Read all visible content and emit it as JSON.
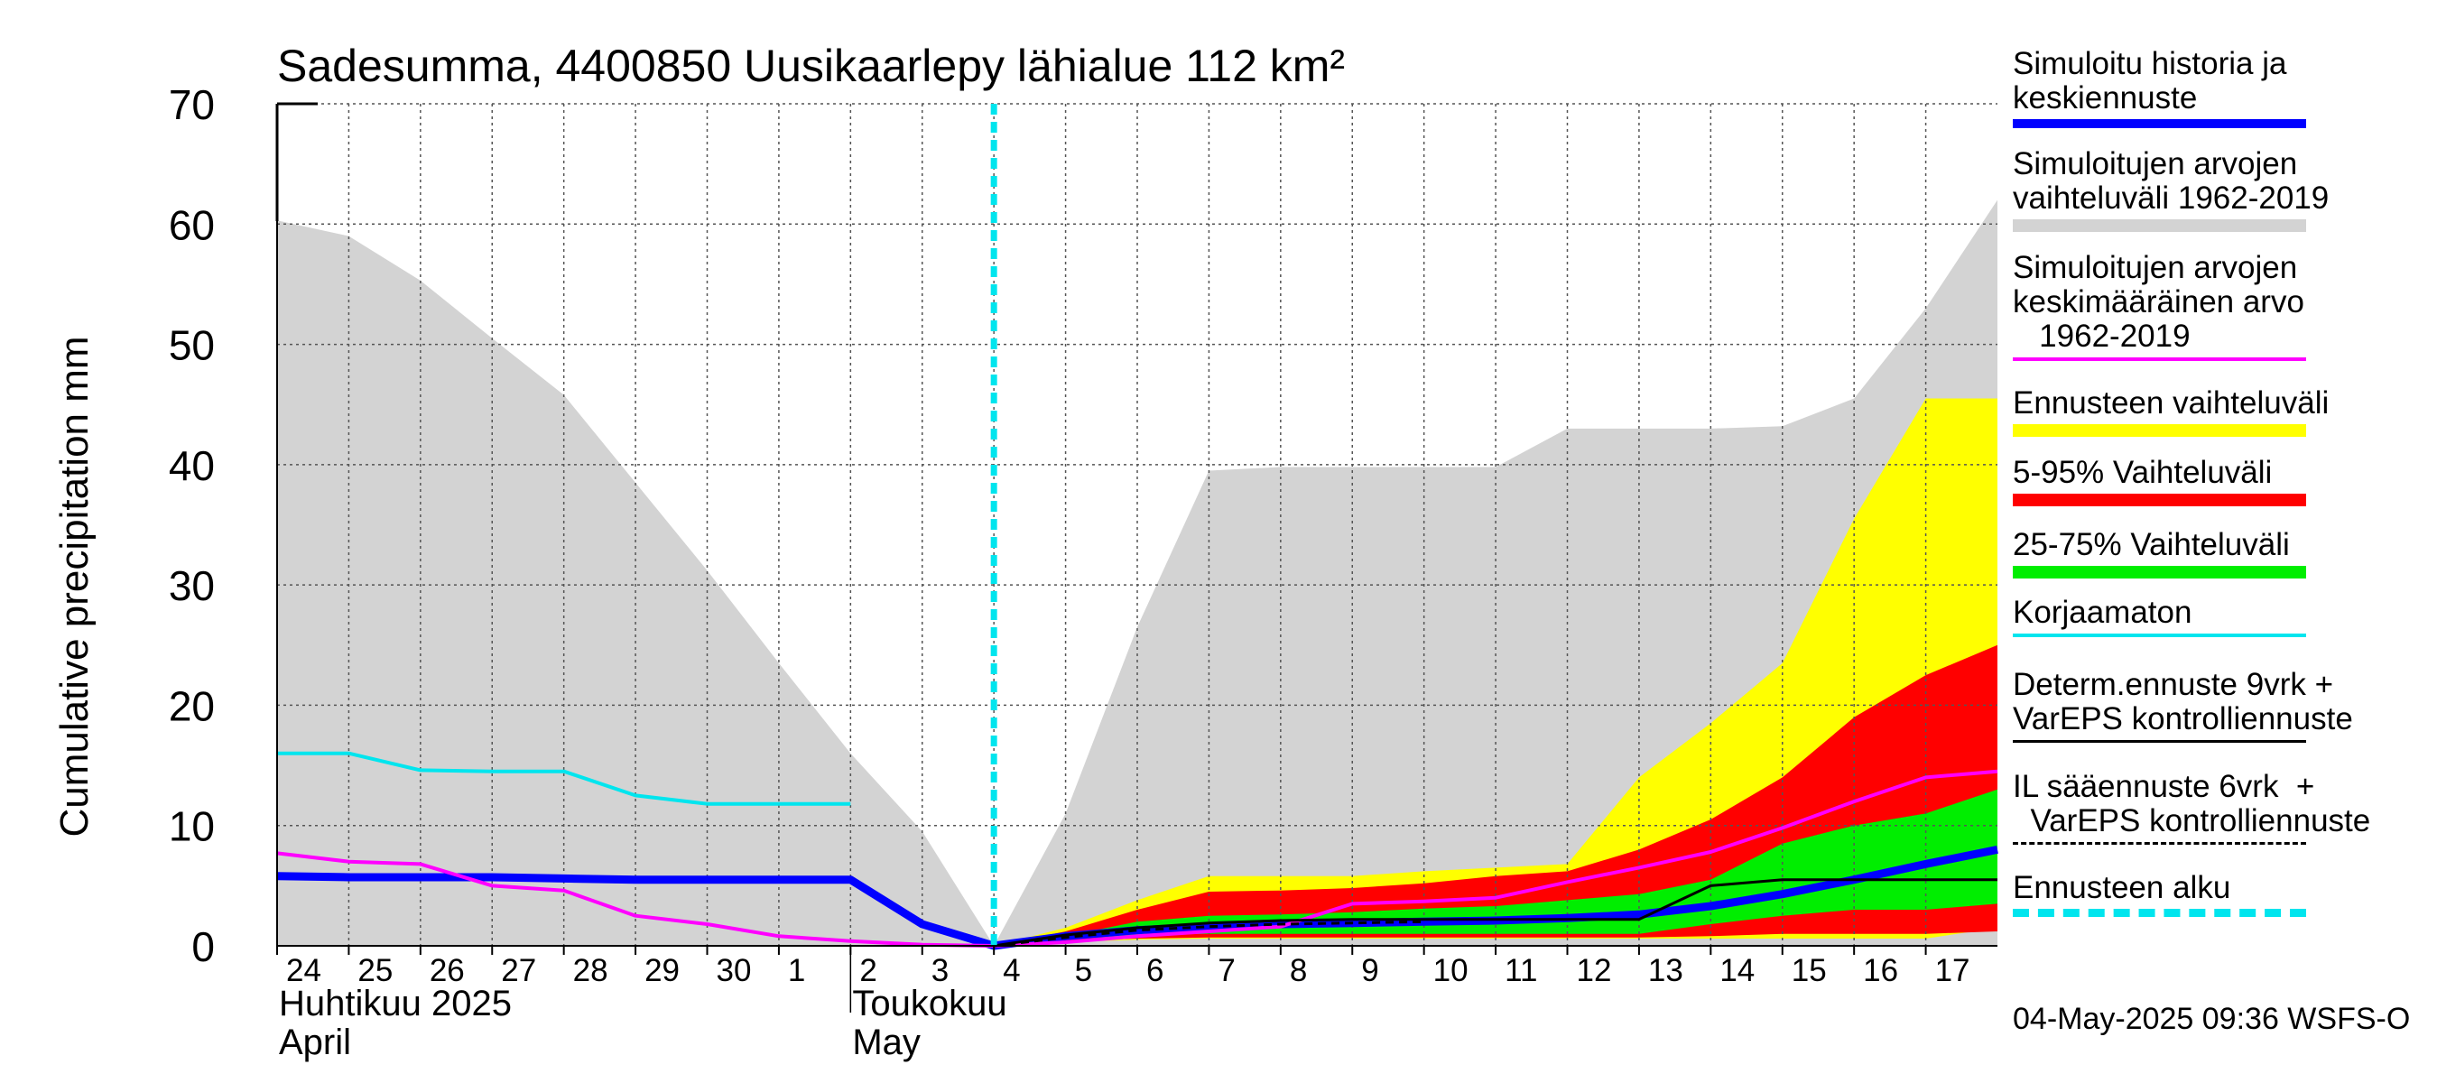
{
  "chart_data": {
    "type": "area",
    "title": "Sadesumma, 4400850 Uusikaarlepy lähialue 112 km²",
    "ylabel": "Cumulative precipitation   mm",
    "ylim": [
      0,
      70
    ],
    "yticks": [
      0,
      10,
      20,
      30,
      40,
      50,
      60,
      70
    ],
    "grid": true,
    "x_tick_labels": [
      "24",
      "25",
      "26",
      "27",
      "28",
      "29",
      "30",
      "1",
      "2",
      "3",
      "4",
      "5",
      "6",
      "7",
      "8",
      "9",
      "10",
      "11",
      "12",
      "13",
      "14",
      "15",
      "16",
      "17"
    ],
    "month_labels": [
      {
        "line1": "Huhtikuu  2025",
        "line2": "April",
        "at_index": 0
      },
      {
        "line1": "Toukokuu",
        "line2": "May",
        "at_index": 8
      }
    ],
    "x_index_max": 24,
    "forecast_start_index": 10,
    "series": [
      {
        "name": "Simuloitujen arvojen vaihteluväli 1962-2019",
        "kind": "band",
        "color": "#d3d3d3",
        "x": [
          0,
          1,
          2,
          3,
          4,
          5,
          6,
          7,
          8,
          9,
          10,
          11,
          12,
          13,
          14,
          15,
          16,
          17,
          18,
          19,
          20,
          21,
          22,
          23,
          24
        ],
        "lower": [
          0,
          0,
          0,
          0,
          0,
          0,
          0,
          0,
          0,
          0,
          0,
          0,
          0,
          0,
          0,
          0,
          0,
          0,
          0,
          0,
          0,
          0,
          0,
          0,
          0
        ],
        "upper": [
          60.3,
          59,
          55.3,
          50.5,
          45.8,
          38.5,
          31.2,
          23.5,
          16,
          9.5,
          0,
          11,
          26.5,
          39.5,
          39.8,
          39.8,
          39.8,
          39.8,
          43,
          43,
          43,
          43.2,
          45.5,
          53,
          62
        ]
      },
      {
        "name": "Ennusteen vaihteluväli",
        "kind": "band",
        "color": "#ffff00",
        "x": [
          10,
          11,
          12,
          13,
          14,
          15,
          16,
          17,
          18,
          19,
          20,
          21,
          22,
          23,
          24
        ],
        "lower": [
          0,
          0.3,
          0.5,
          0.6,
          0.6,
          0.6,
          0.6,
          0.6,
          0.6,
          0.6,
          0.6,
          0.6,
          0.6,
          0.6,
          1.5
        ],
        "upper": [
          0,
          1.5,
          3.8,
          5.8,
          5.8,
          5.8,
          6.2,
          6.5,
          6.8,
          14,
          18.5,
          23.5,
          35.5,
          45.5,
          45.5
        ]
      },
      {
        "name": "5-95% Vaihteluväli",
        "kind": "band",
        "color": "#ff0000",
        "x": [
          10,
          11,
          12,
          13,
          14,
          15,
          16,
          17,
          18,
          19,
          20,
          21,
          22,
          23,
          24
        ],
        "lower": [
          0,
          0.4,
          0.6,
          0.7,
          0.7,
          0.7,
          0.7,
          0.7,
          0.7,
          0.7,
          0.8,
          1,
          1,
          1,
          1.2
        ],
        "upper": [
          0,
          1.2,
          3,
          4.5,
          4.6,
          4.8,
          5.2,
          5.8,
          6.2,
          8,
          10.5,
          14,
          19,
          22.5,
          25
        ]
      },
      {
        "name": "25-75% Vaihteluväli",
        "kind": "band",
        "color": "#00ee00",
        "x": [
          10,
          11,
          12,
          13,
          14,
          15,
          16,
          17,
          18,
          19,
          20,
          21,
          22,
          23,
          24
        ],
        "lower": [
          0,
          0.5,
          0.9,
          1,
          1,
          1,
          1,
          1,
          1,
          1,
          1.8,
          2.5,
          3,
          3,
          3.5
        ],
        "upper": [
          0,
          0.8,
          2,
          2.5,
          2.6,
          2.8,
          3.1,
          3.3,
          3.8,
          4.3,
          5.5,
          8.5,
          10,
          11,
          13
        ]
      },
      {
        "name": "Simuloitu historia ja keskiennuste",
        "kind": "line",
        "color": "#0000ff",
        "x": [
          0,
          1,
          2,
          3,
          4,
          5,
          6,
          7,
          8,
          9,
          10,
          11,
          12,
          13,
          14,
          15,
          16,
          17,
          18,
          19,
          20,
          21,
          22,
          23,
          24
        ],
        "y": [
          5.8,
          5.7,
          5.7,
          5.7,
          5.6,
          5.5,
          5.5,
          5.5,
          5.5,
          1.8,
          0,
          0.8,
          1.3,
          1.6,
          1.8,
          1.9,
          2,
          2.1,
          2.3,
          2.6,
          3.3,
          4.3,
          5.5,
          6.8,
          8
        ]
      },
      {
        "name": "Simuloitujen arvojen keskimääräinen arvo 1962-2019",
        "kind": "line",
        "color": "#ff00ff",
        "x": [
          0,
          1,
          2,
          3,
          4,
          5,
          6,
          7,
          8,
          9,
          10,
          11,
          12,
          13,
          14,
          15,
          16,
          17,
          18,
          19,
          20,
          21,
          22,
          23,
          24
        ],
        "y": [
          7.7,
          7,
          6.8,
          5,
          4.6,
          2.5,
          1.8,
          0.8,
          0.4,
          0.1,
          0,
          0.3,
          0.8,
          1.2,
          1.6,
          3.5,
          3.7,
          4,
          5.3,
          6.5,
          7.8,
          9.8,
          12,
          14,
          14.5
        ]
      },
      {
        "name": "Korjaamaton",
        "kind": "line",
        "color": "#00e5ee",
        "x": [
          0,
          1,
          2,
          3,
          4,
          5,
          6,
          7,
          8
        ],
        "y": [
          16,
          16,
          14.6,
          14.5,
          14.5,
          12.5,
          11.8,
          11.8,
          11.8
        ]
      },
      {
        "name": "Determ.ennuste 9vrk + VarEPS kontrolliennuste",
        "kind": "line",
        "color": "#000000",
        "x": [
          10,
          11,
          12,
          13,
          14,
          15,
          16,
          17,
          18,
          19,
          20,
          21,
          22,
          23,
          24
        ],
        "y": [
          0,
          0.9,
          1.5,
          1.9,
          2.1,
          2.2,
          2.2,
          2.2,
          2.2,
          2.2,
          5,
          5.5,
          5.5,
          5.5,
          5.5
        ]
      },
      {
        "name": "IL sääennuste 6vrk + VarEPS kontrolliennuste",
        "kind": "dashed-line",
        "color": "#000000",
        "x": [
          10,
          11,
          12,
          13,
          14,
          15,
          16
        ],
        "y": [
          0,
          0.7,
          1.3,
          1.6,
          1.8,
          1.9,
          2
        ]
      }
    ],
    "legend_entries": [
      {
        "text": "Simuloitu historia ja\nkeskiennuste",
        "color": "#0000ff",
        "style": "thick"
      },
      {
        "text": "Simuloitujen arvojen\nvaihteluväli 1962-2019",
        "color": "#d3d3d3",
        "style": "block"
      },
      {
        "text": "Simuloitujen arvojen\nkeskimääräinen arvo\n   1962-2019",
        "color": "#ff00ff",
        "style": "line"
      },
      {
        "text": "Ennusteen vaihteluväli",
        "color": "#ffff00",
        "style": "block"
      },
      {
        "text": "5-95% Vaihteluväli",
        "color": "#ff0000",
        "style": "block"
      },
      {
        "text": "25-75% Vaihteluväli",
        "color": "#00ee00",
        "style": "block"
      },
      {
        "text": "Korjaamaton",
        "color": "#00e5ee",
        "style": "line"
      },
      {
        "text": "Determ.ennuste 9vrk +\nVarEPS kontrolliennuste",
        "color": "#000000",
        "style": "thin"
      },
      {
        "text": "IL sääennuste 6vrk  +\n  VarEPS kontrolliennuste",
        "color": "#000000",
        "style": "dashed"
      },
      {
        "text": "Ennusteen alku",
        "color": "#00e5ee",
        "style": "dotted"
      }
    ],
    "footer": "04-May-2025 09:36 WSFS-O"
  }
}
